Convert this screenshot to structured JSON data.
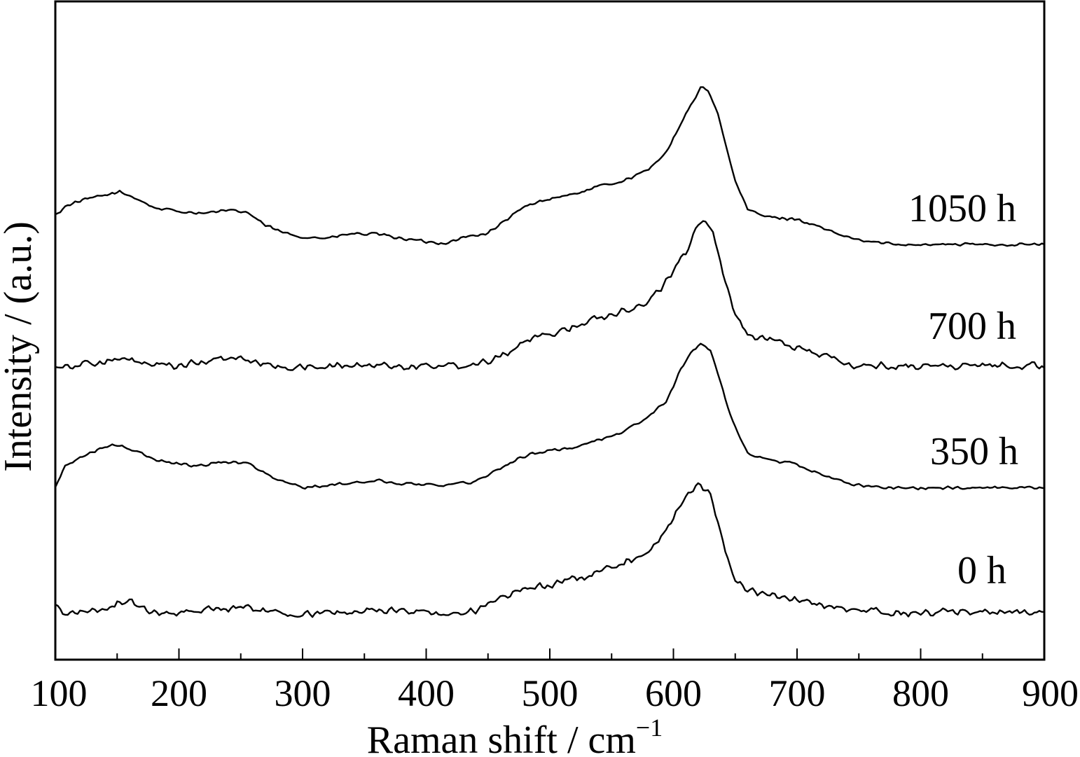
{
  "chart_data": {
    "type": "line",
    "xlabel": "Raman shift / cm",
    "xlabel_sup": "−1",
    "ylabel": "Intensity / (a.u.)",
    "xlim": [
      100,
      900
    ],
    "x_ticks": [
      100,
      200,
      300,
      400,
      500,
      600,
      700,
      800,
      900
    ],
    "y_ticks_labeled": false,
    "grid": false,
    "legend": "inline labels at right of each trace",
    "series": [
      {
        "name": "1050 h",
        "offset": 3,
        "noise": 0.06,
        "points": [
          [
            100,
            0.95
          ],
          [
            110,
            1.28
          ],
          [
            125,
            1.45
          ],
          [
            140,
            1.58
          ],
          [
            152,
            1.68
          ],
          [
            165,
            1.5
          ],
          [
            180,
            1.18
          ],
          [
            200,
            1.07
          ],
          [
            220,
            1.02
          ],
          [
            240,
            1.09
          ],
          [
            255,
            1.05
          ],
          [
            270,
            0.62
          ],
          [
            285,
            0.38
          ],
          [
            300,
            0.26
          ],
          [
            320,
            0.22
          ],
          [
            340,
            0.36
          ],
          [
            360,
            0.34
          ],
          [
            380,
            0.22
          ],
          [
            400,
            0.1
          ],
          [
            415,
            0.06
          ],
          [
            430,
            0.24
          ],
          [
            450,
            0.38
          ],
          [
            465,
            0.8
          ],
          [
            480,
            1.22
          ],
          [
            500,
            1.48
          ],
          [
            520,
            1.62
          ],
          [
            540,
            1.86
          ],
          [
            560,
            2.05
          ],
          [
            580,
            2.38
          ],
          [
            595,
            3.02
          ],
          [
            605,
            3.75
          ],
          [
            615,
            4.5
          ],
          [
            622,
            4.98
          ],
          [
            628,
            4.92
          ],
          [
            635,
            4.3
          ],
          [
            642,
            3.25
          ],
          [
            650,
            2.02
          ],
          [
            660,
            1.12
          ],
          [
            675,
            0.9
          ],
          [
            690,
            0.85
          ],
          [
            700,
            0.82
          ],
          [
            715,
            0.62
          ],
          [
            730,
            0.38
          ],
          [
            750,
            0.15
          ],
          [
            775,
            0.04
          ],
          [
            800,
            0.02
          ],
          [
            850,
            0.02
          ],
          [
            900,
            0.02
          ]
        ]
      },
      {
        "name": "700 h",
        "offset": 2,
        "noise": 0.14,
        "points": [
          [
            100,
            0.05
          ],
          [
            115,
            0.05
          ],
          [
            130,
            0.12
          ],
          [
            150,
            0.22
          ],
          [
            165,
            0.18
          ],
          [
            180,
            0.02
          ],
          [
            200,
            0.04
          ],
          [
            215,
            0.12
          ],
          [
            235,
            0.26
          ],
          [
            255,
            0.24
          ],
          [
            270,
            0.08
          ],
          [
            285,
            0.0
          ],
          [
            300,
            -0.02
          ],
          [
            320,
            0.02
          ],
          [
            340,
            0.04
          ],
          [
            360,
            0.06
          ],
          [
            380,
            0.04
          ],
          [
            400,
            0.04
          ],
          [
            420,
            0.06
          ],
          [
            440,
            0.1
          ],
          [
            460,
            0.36
          ],
          [
            480,
            0.8
          ],
          [
            500,
            1.04
          ],
          [
            520,
            1.3
          ],
          [
            540,
            1.56
          ],
          [
            560,
            1.82
          ],
          [
            580,
            2.04
          ],
          [
            600,
            3.04
          ],
          [
            610,
            3.62
          ],
          [
            618,
            4.45
          ],
          [
            625,
            4.72
          ],
          [
            632,
            4.24
          ],
          [
            640,
            3.05
          ],
          [
            648,
            1.85
          ],
          [
            660,
            1.04
          ],
          [
            680,
            0.82
          ],
          [
            700,
            0.62
          ],
          [
            720,
            0.4
          ],
          [
            740,
            0.06
          ],
          [
            760,
            0.02
          ],
          [
            780,
            0.04
          ],
          [
            800,
            0.04
          ],
          [
            850,
            0.04
          ],
          [
            900,
            0.04
          ]
        ]
      },
      {
        "name": "350 h",
        "offset": 1,
        "noise": 0.06,
        "points": [
          [
            100,
            0.05
          ],
          [
            108,
            0.72
          ],
          [
            120,
            1.0
          ],
          [
            135,
            1.25
          ],
          [
            150,
            1.4
          ],
          [
            165,
            1.2
          ],
          [
            180,
            0.92
          ],
          [
            200,
            0.8
          ],
          [
            215,
            0.72
          ],
          [
            230,
            0.84
          ],
          [
            245,
            0.86
          ],
          [
            260,
            0.76
          ],
          [
            275,
            0.35
          ],
          [
            290,
            0.15
          ],
          [
            300,
            0.05
          ],
          [
            320,
            0.1
          ],
          [
            340,
            0.18
          ],
          [
            360,
            0.26
          ],
          [
            380,
            0.16
          ],
          [
            400,
            0.14
          ],
          [
            420,
            0.13
          ],
          [
            440,
            0.24
          ],
          [
            460,
            0.65
          ],
          [
            480,
            1.05
          ],
          [
            500,
            1.22
          ],
          [
            520,
            1.3
          ],
          [
            540,
            1.56
          ],
          [
            560,
            1.82
          ],
          [
            580,
            2.28
          ],
          [
            595,
            2.82
          ],
          [
            605,
            3.7
          ],
          [
            615,
            4.38
          ],
          [
            622,
            4.62
          ],
          [
            630,
            4.4
          ],
          [
            637,
            3.55
          ],
          [
            645,
            2.42
          ],
          [
            660,
            1.12
          ],
          [
            680,
            0.88
          ],
          [
            700,
            0.78
          ],
          [
            720,
            0.46
          ],
          [
            740,
            0.18
          ],
          [
            760,
            0.06
          ],
          [
            800,
            0.02
          ],
          [
            850,
            0.04
          ],
          [
            900,
            0.04
          ]
        ]
      },
      {
        "name": "0 h",
        "offset": 0,
        "noise": 0.14,
        "points": [
          [
            100,
            0.28
          ],
          [
            108,
            0.02
          ],
          [
            120,
            0.12
          ],
          [
            135,
            0.12
          ],
          [
            150,
            0.4
          ],
          [
            162,
            0.4
          ],
          [
            175,
            0.1
          ],
          [
            190,
            0.08
          ],
          [
            210,
            0.1
          ],
          [
            230,
            0.24
          ],
          [
            250,
            0.22
          ],
          [
            265,
            0.18
          ],
          [
            280,
            0.04
          ],
          [
            300,
            0.02
          ],
          [
            320,
            0.06
          ],
          [
            340,
            0.1
          ],
          [
            360,
            0.16
          ],
          [
            380,
            0.12
          ],
          [
            400,
            0.1
          ],
          [
            420,
            0.02
          ],
          [
            440,
            0.14
          ],
          [
            460,
            0.48
          ],
          [
            480,
            0.84
          ],
          [
            500,
            0.96
          ],
          [
            520,
            1.12
          ],
          [
            540,
            1.4
          ],
          [
            560,
            1.7
          ],
          [
            580,
            2.0
          ],
          [
            595,
            2.72
          ],
          [
            605,
            3.42
          ],
          [
            615,
            3.95
          ],
          [
            622,
            4.18
          ],
          [
            630,
            3.78
          ],
          [
            636,
            2.95
          ],
          [
            642,
            2.02
          ],
          [
            650,
            1.08
          ],
          [
            665,
            0.7
          ],
          [
            680,
            0.62
          ],
          [
            700,
            0.48
          ],
          [
            720,
            0.34
          ],
          [
            740,
            0.14
          ],
          [
            770,
            0.12
          ],
          [
            790,
            0.04
          ],
          [
            820,
            0.1
          ],
          [
            860,
            0.1
          ],
          [
            900,
            0.12
          ]
        ]
      }
    ]
  }
}
